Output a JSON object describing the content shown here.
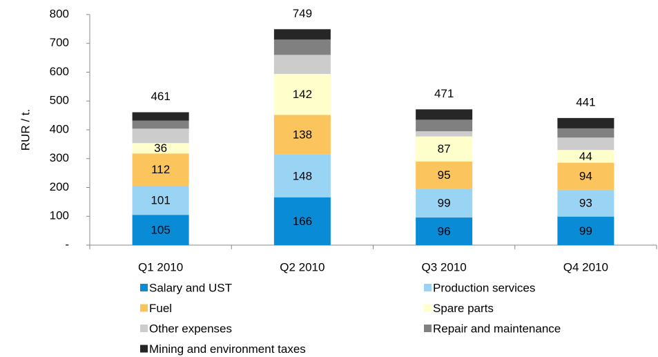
{
  "chart_data": {
    "type": "stacked_bar",
    "y_label": "RUR / t.",
    "categories": [
      "Q1 2010",
      "Q2 2010",
      "Q3 2010",
      "Q4 2010"
    ],
    "totals": [
      461,
      749,
      471,
      441
    ],
    "series": [
      {
        "name": "Salary and UST",
        "color": "#0a8bd6",
        "values": [
          105,
          166,
          96,
          99
        ],
        "show_labels": true
      },
      {
        "name": "Production services",
        "color": "#99d4f5",
        "values": [
          101,
          148,
          99,
          93
        ],
        "show_labels": true
      },
      {
        "name": "Fuel",
        "color": "#fbc45d",
        "values": [
          112,
          138,
          95,
          94
        ],
        "show_labels": true
      },
      {
        "name": "Spare parts",
        "color": "#ffffcc",
        "values": [
          36,
          142,
          87,
          44
        ],
        "show_labels": true
      },
      {
        "name": "Other expenses",
        "color": "#cccccc",
        "values": [
          50,
          66,
          18,
          43
        ],
        "show_labels": false
      },
      {
        "name": "Repair and maintenance",
        "color": "#808080",
        "values": [
          28,
          53,
          40,
          32
        ],
        "show_labels": false
      },
      {
        "name": "Mining and environment taxes",
        "color": "#262626",
        "values": [
          29,
          36,
          36,
          36
        ],
        "show_labels": false
      }
    ],
    "ylim": [
      0,
      800
    ],
    "yticks": [
      {
        "value": 0,
        "label": "-"
      },
      100,
      200,
      300,
      400,
      500,
      600,
      700,
      800
    ]
  }
}
